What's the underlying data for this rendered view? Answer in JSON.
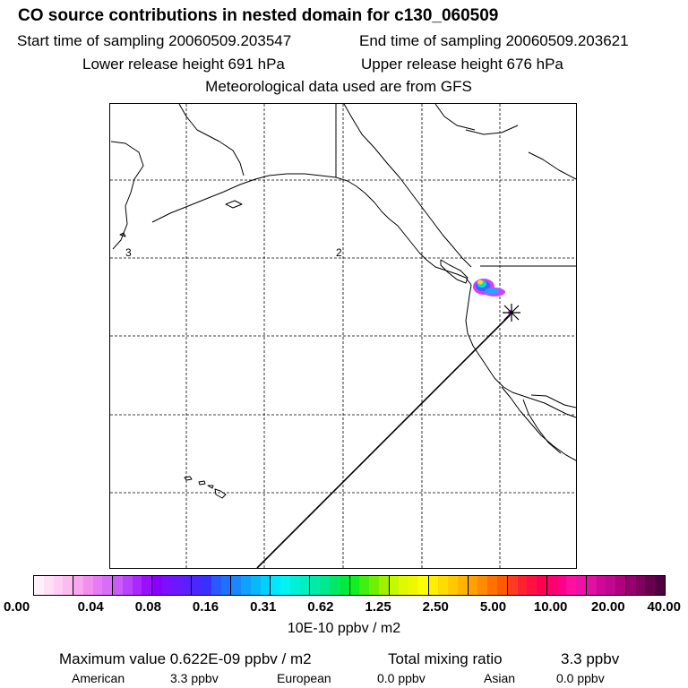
{
  "title": "CO  source contributions in nested domain for c130_060509",
  "sampling": {
    "start": "Start time of sampling 20060509.203547",
    "end": "End time of sampling 20060509.203621"
  },
  "release": {
    "lower": "Lower release height  691 hPa",
    "upper": "Upper release height  676 hPa"
  },
  "met_note": "Meteorological data used are from GFS",
  "map": {
    "grid_labels": [
      "3",
      "2"
    ],
    "receptor_marker": "star-marker",
    "colors": {
      "land_outline": "#000000",
      "grid": "#000000",
      "background": "#ffffff"
    }
  },
  "colorbar": {
    "ticks": [
      "0.00",
      "0.04",
      "0.08",
      "0.16",
      "0.31",
      "0.62",
      "1.25",
      "2.50",
      "5.00",
      "10.00",
      "20.00",
      "40.00"
    ],
    "colors": [
      "#fff0fb",
      "#ffe0f7",
      "#ffcdf5",
      "#fdbbf2",
      "#f8a6ef",
      "#f28eed",
      "#e67cf3",
      "#d86ef7",
      "#c95cf9",
      "#b843fb",
      "#a828fd",
      "#9a10fd",
      "#8a00ff",
      "#7a10ff",
      "#6a18ff",
      "#5a20ff",
      "#4828ff",
      "#3830ff",
      "#2a5aff",
      "#2070ff",
      "#1888ff",
      "#10a0ff",
      "#08b8ff",
      "#00d0ff",
      "#00e8ff",
      "#00f4f0",
      "#00f0d8",
      "#00f0c0",
      "#00eaa8",
      "#00e890",
      "#00e86a",
      "#00ea40",
      "#10f020",
      "#40f010",
      "#70f000",
      "#a0f000",
      "#c8f800",
      "#e0f800",
      "#f0f800",
      "#ffff00",
      "#fff000",
      "#ffdc00",
      "#ffc800",
      "#ffb400",
      "#ffa000",
      "#ff8c00",
      "#ff7000",
      "#ff5a00",
      "#ff3c20",
      "#ff2030",
      "#ff1040",
      "#ff0050",
      "#ff0070",
      "#ff0088",
      "#ff10a0",
      "#f010a8",
      "#e010a0",
      "#d00898",
      "#c00890",
      "#b00080",
      "#980070",
      "#800060",
      "#680050",
      "#500040"
    ],
    "unit": "10E-10 ppbv / m2"
  },
  "summary": {
    "max_label": "Maximum value  0.622E-09 ppbv / m2",
    "total_label": "Total mixing ratio",
    "total_value": "3.3 ppbv",
    "regions": [
      {
        "name": "American",
        "value": "3.3 ppbv"
      },
      {
        "name": "European",
        "value": "0.0 ppbv"
      },
      {
        "name": "Asian",
        "value": "0.0 ppbv"
      }
    ]
  }
}
